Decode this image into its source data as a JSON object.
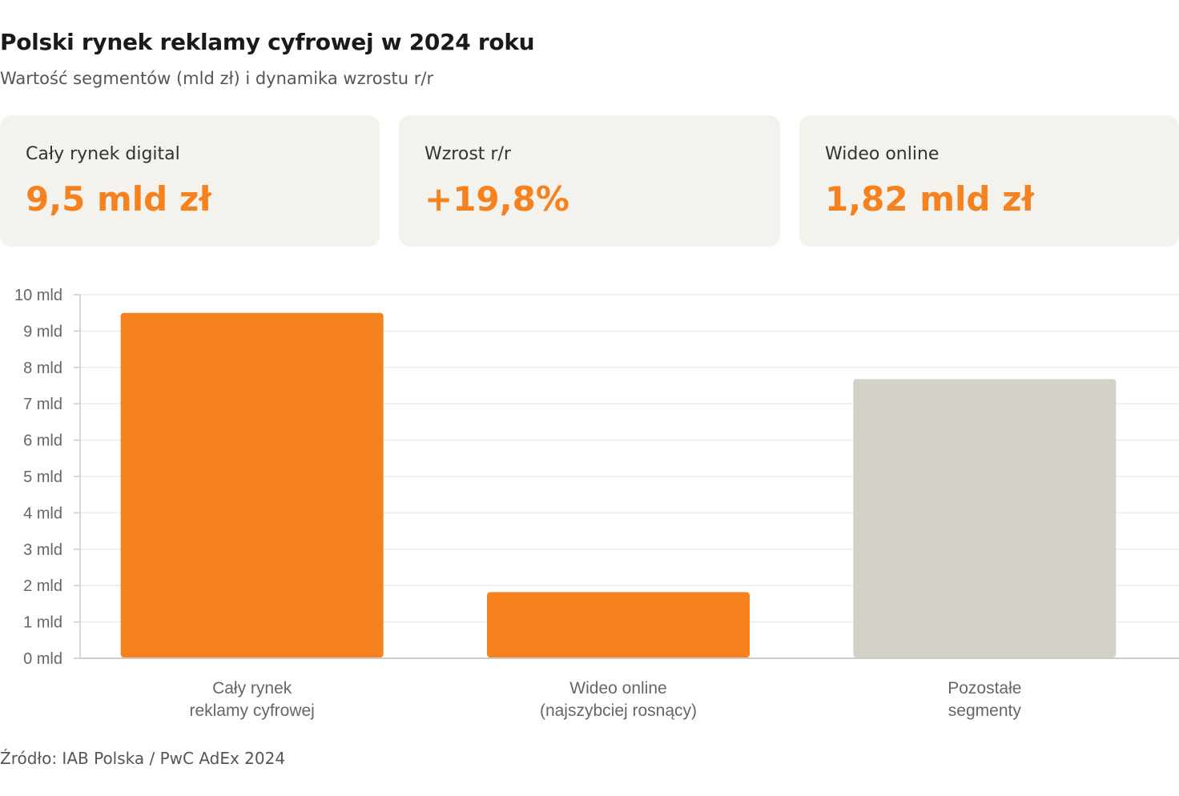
{
  "header": {
    "title": "Polski rynek reklamy cyfrowej w 2024 roku",
    "subtitle": "Wartość segmentów (mld zł) i dynamika wzrostu r/r"
  },
  "cards": [
    {
      "label": "Cały rynek digital",
      "value": "9,5 mld zł"
    },
    {
      "label": "Wzrost r/r",
      "value": "+19,8%"
    },
    {
      "label": "Wideo online",
      "value": "1,82 mld zł"
    }
  ],
  "chart_data": {
    "type": "bar",
    "categories": [
      [
        "Cały rynek",
        "reklamy cyfrowej"
      ],
      [
        "Wideo online",
        "(najszybciej rosnący)"
      ],
      [
        "Pozostałe",
        "segmenty"
      ]
    ],
    "values": [
      9.5,
      1.82,
      7.68
    ],
    "colors": [
      "#f5821f",
      "#f5821f",
      "#d4d1ca"
    ],
    "ylim": [
      0,
      10
    ],
    "yticks": [
      {
        "value": 0,
        "label": "0 mld"
      },
      {
        "value": 1,
        "label": "1 mld"
      },
      {
        "value": 2,
        "label": "2 mld"
      },
      {
        "value": 3,
        "label": "3 mld"
      },
      {
        "value": 4,
        "label": "4 mld"
      },
      {
        "value": 5,
        "label": "5 mld"
      },
      {
        "value": 6,
        "label": "6 mld"
      },
      {
        "value": 7,
        "label": "7 mld"
      },
      {
        "value": 8,
        "label": "8 mld"
      },
      {
        "value": 9,
        "label": "9 mld"
      },
      {
        "value": 10,
        "label": "10 mld"
      }
    ],
    "grid": true,
    "legend": "none"
  },
  "footer": {
    "source": "Źródło: IAB Polska / PwC AdEx 2024"
  }
}
